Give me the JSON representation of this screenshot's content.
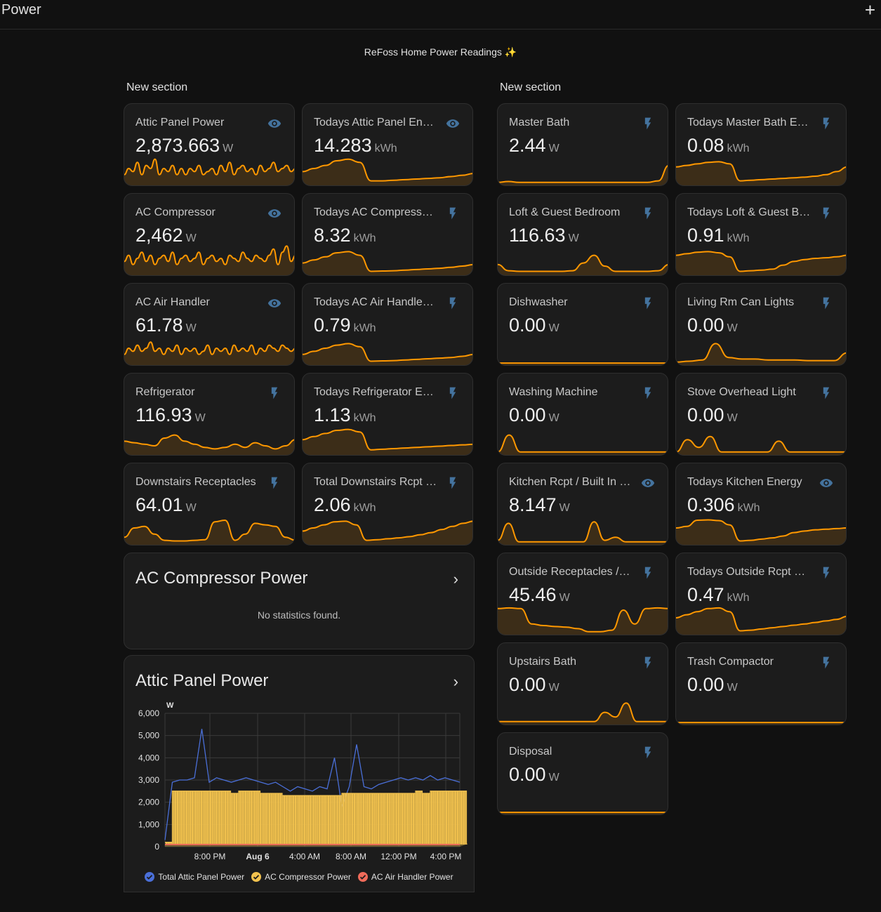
{
  "header": {
    "title": "Power",
    "add_icon": "plus-icon"
  },
  "heading": "ReFoss Home Power Readings ✨",
  "left_section": {
    "title": "New section"
  },
  "right_section": {
    "title": "New section"
  },
  "colors": {
    "accent": "#ff9800",
    "icon_blue": "#44739e",
    "background": "#111111",
    "card": "#1c1c1c"
  },
  "tiles": [
    {
      "id": "attic-panel-power",
      "name": "Attic Panel Power",
      "value": "2,873.663",
      "unit": "W",
      "icon": "eye-icon",
      "spark": [
        0.3,
        0.5,
        0.4,
        0.7,
        0.3,
        0.6,
        0.5,
        0.8,
        0.3,
        0.5,
        0.4,
        0.6,
        0.3,
        0.5,
        0.3,
        0.5,
        0.4,
        0.6,
        0.3,
        0.4,
        0.5,
        0.3,
        0.6,
        0.4,
        0.7,
        0.3,
        0.5,
        0.6,
        0.4,
        0.5,
        0.3,
        0.6,
        0.4,
        0.5,
        0.7,
        0.4,
        0.5,
        0.6,
        0.4,
        0.5
      ]
    },
    {
      "id": "todays-attic-panel-energy",
      "name": "Todays Attic Panel Energy",
      "value": "14.283",
      "unit": "kWh",
      "icon": "eye-icon",
      "spark": [
        0.4,
        0.5,
        0.6,
        0.75,
        0.8,
        0.7,
        0.1,
        0.1,
        0.12,
        0.14,
        0.16,
        0.18,
        0.2,
        0.24,
        0.28,
        0.34
      ]
    },
    {
      "id": "ac-compressor",
      "name": "AC Compressor",
      "value": "2,462",
      "unit": "W",
      "icon": "eye-icon",
      "spark": [
        0.4,
        0.6,
        0.3,
        0.5,
        0.7,
        0.4,
        0.6,
        0.3,
        0.5,
        0.6,
        0.4,
        0.7,
        0.3,
        0.5,
        0.6,
        0.4,
        0.5,
        0.7,
        0.3,
        0.5,
        0.6,
        0.4,
        0.5,
        0.3,
        0.6,
        0.5,
        0.4,
        0.7,
        0.5,
        0.4,
        0.6,
        0.5,
        0.4,
        0.6,
        0.8,
        0.3,
        0.7,
        0.9,
        0.4,
        0.6
      ]
    },
    {
      "id": "todays-ac-compressor",
      "name": "Todays AC Compressor Energy",
      "value": "8.32",
      "unit": "kWh",
      "icon": "flash-icon",
      "spark": [
        0.35,
        0.45,
        0.55,
        0.68,
        0.72,
        0.6,
        0.08,
        0.09,
        0.1,
        0.12,
        0.14,
        0.16,
        0.18,
        0.21,
        0.25,
        0.3
      ]
    },
    {
      "id": "ac-air-handler",
      "name": "AC Air Handler",
      "value": "61.78",
      "unit": "W",
      "icon": "eye-icon",
      "spark": [
        0.3,
        0.5,
        0.4,
        0.6,
        0.4,
        0.5,
        0.7,
        0.4,
        0.5,
        0.3,
        0.5,
        0.4,
        0.6,
        0.3,
        0.5,
        0.4,
        0.5,
        0.3,
        0.4,
        0.6,
        0.3,
        0.5,
        0.4,
        0.5,
        0.3,
        0.6,
        0.4,
        0.5,
        0.4,
        0.6,
        0.3,
        0.5,
        0.4,
        0.6,
        0.5,
        0.4,
        0.6,
        0.5,
        0.4,
        0.5
      ]
    },
    {
      "id": "todays-ac-air-handler",
      "name": "Todays AC Air Handler Energy",
      "value": "0.79",
      "unit": "kWh",
      "icon": "flash-icon",
      "spark": [
        0.3,
        0.4,
        0.5,
        0.6,
        0.65,
        0.55,
        0.08,
        0.09,
        0.1,
        0.12,
        0.14,
        0.16,
        0.18,
        0.2,
        0.24,
        0.3
      ]
    },
    {
      "id": "refrigerator",
      "name": "Refrigerator",
      "value": "116.93",
      "unit": "W",
      "icon": "flash-icon",
      "spark": [
        0.4,
        0.35,
        0.3,
        0.25,
        0.5,
        0.6,
        0.4,
        0.3,
        0.2,
        0.15,
        0.2,
        0.3,
        0.2,
        0.35,
        0.25,
        0.15,
        0.25,
        0.45
      ]
    },
    {
      "id": "todays-refrigerator",
      "name": "Todays Refrigerator Energy",
      "value": "1.13",
      "unit": "kWh",
      "icon": "flash-icon",
      "spark": [
        0.45,
        0.55,
        0.65,
        0.75,
        0.78,
        0.7,
        0.12,
        0.14,
        0.16,
        0.18,
        0.2,
        0.22,
        0.24,
        0.26,
        0.28,
        0.3
      ]
    },
    {
      "id": "downstairs-receptacles",
      "name": "Downstairs Receptacles",
      "value": "64.01",
      "unit": "W",
      "icon": "flash-icon",
      "spark": [
        0.2,
        0.5,
        0.55,
        0.3,
        0.1,
        0.08,
        0.08,
        0.1,
        0.12,
        0.7,
        0.75,
        0.1,
        0.3,
        0.65,
        0.6,
        0.55,
        0.2,
        0.1
      ]
    },
    {
      "id": "total-downstairs-rcpt",
      "name": "Total Downstairs Rcpt Energy",
      "value": "2.06",
      "unit": "kWh",
      "icon": "flash-icon",
      "spark": [
        0.4,
        0.5,
        0.6,
        0.7,
        0.72,
        0.6,
        0.1,
        0.12,
        0.15,
        0.18,
        0.22,
        0.28,
        0.35,
        0.45,
        0.55,
        0.65,
        0.72
      ]
    },
    {
      "id": "master-bath",
      "name": "Master Bath",
      "value": "2.44",
      "unit": "W",
      "icon": "flash-icon",
      "spark": [
        0.05,
        0.08,
        0.05,
        0.05,
        0.05,
        0.05,
        0.05,
        0.05,
        0.05,
        0.05,
        0.05,
        0.05,
        0.05,
        0.05,
        0.05,
        0.1,
        0.6
      ]
    },
    {
      "id": "todays-master-bath",
      "name": "Todays Master Bath Energy",
      "value": "0.08",
      "unit": "kWh",
      "icon": "flash-icon",
      "spark": [
        0.55,
        0.6,
        0.65,
        0.7,
        0.72,
        0.65,
        0.1,
        0.12,
        0.14,
        0.16,
        0.18,
        0.2,
        0.22,
        0.25,
        0.3,
        0.4,
        0.55
      ]
    },
    {
      "id": "loft-guest-bedroom",
      "name": "Loft & Guest Bedroom",
      "value": "116.63",
      "unit": "W",
      "icon": "flash-icon",
      "spark": [
        0.3,
        0.1,
        0.08,
        0.08,
        0.08,
        0.08,
        0.08,
        0.1,
        0.35,
        0.6,
        0.25,
        0.08,
        0.08,
        0.08,
        0.08,
        0.1,
        0.3
      ]
    },
    {
      "id": "todays-loft-guest",
      "name": "Todays Loft & Guest Bdrm Energy",
      "value": "0.91",
      "unit": "kWh",
      "icon": "flash-icon",
      "spark": [
        0.6,
        0.65,
        0.7,
        0.72,
        0.68,
        0.55,
        0.08,
        0.1,
        0.12,
        0.15,
        0.28,
        0.4,
        0.46,
        0.5,
        0.52,
        0.55,
        0.6
      ]
    },
    {
      "id": "dishwasher",
      "name": "Dishwasher",
      "value": "0.00",
      "unit": "W",
      "icon": "flash-icon",
      "spark": [
        0.02,
        0.02,
        0.02,
        0.02,
        0.02,
        0.02,
        0.02,
        0.02,
        0.02,
        0.02,
        0.02,
        0.02
      ]
    },
    {
      "id": "living-rm-can-lights",
      "name": "Living Rm Can Lights",
      "value": "0.00",
      "unit": "W",
      "icon": "flash-icon",
      "spark": [
        0.05,
        0.08,
        0.12,
        0.65,
        0.2,
        0.15,
        0.15,
        0.12,
        0.12,
        0.12,
        0.1,
        0.1,
        0.1,
        0.35
      ]
    },
    {
      "id": "washing-machine",
      "name": "Washing Machine",
      "value": "0.00",
      "unit": "W",
      "icon": "flash-icon",
      "spark": [
        0.05,
        0.6,
        0.05,
        0.05,
        0.05,
        0.05,
        0.05,
        0.05,
        0.05,
        0.05,
        0.05,
        0.05,
        0.05,
        0.05,
        0.05,
        0.05
      ]
    },
    {
      "id": "stove-overhead-light",
      "name": "Stove Overhead Light",
      "value": "0.00",
      "unit": "W",
      "icon": "flash-icon",
      "spark": [
        0.05,
        0.45,
        0.2,
        0.55,
        0.05,
        0.05,
        0.05,
        0.05,
        0.05,
        0.4,
        0.05,
        0.05,
        0.05,
        0.05,
        0.05,
        0.05
      ]
    },
    {
      "id": "kitchen-rcpt",
      "name": "Kitchen Rcpt / Built In Stove",
      "value": "8.147",
      "unit": "W",
      "icon": "eye-icon",
      "spark": [
        0.1,
        0.65,
        0.05,
        0.05,
        0.05,
        0.05,
        0.05,
        0.05,
        0.05,
        0.7,
        0.1,
        0.2,
        0.05,
        0.05,
        0.05,
        0.05,
        0.05
      ]
    },
    {
      "id": "todays-kitchen",
      "name": "Todays Kitchen Energy",
      "value": "0.306",
      "unit": "kWh",
      "icon": "eye-icon",
      "spark": [
        0.5,
        0.55,
        0.75,
        0.76,
        0.74,
        0.6,
        0.08,
        0.1,
        0.14,
        0.18,
        0.24,
        0.35,
        0.4,
        0.44,
        0.46,
        0.48,
        0.5
      ]
    },
    {
      "id": "outside-receptacles",
      "name": "Outside Receptacles / Flood Lights",
      "value": "45.46",
      "unit": "W",
      "icon": "flash-icon",
      "spark": [
        0.8,
        0.82,
        0.8,
        0.3,
        0.25,
        0.22,
        0.2,
        0.15,
        0.05,
        0.05,
        0.1,
        0.75,
        0.3,
        0.8,
        0.82,
        0.8
      ]
    },
    {
      "id": "todays-outside-rcpt",
      "name": "Todays Outside Rcpt Energy",
      "value": "0.47",
      "unit": "kWh",
      "icon": "flash-icon",
      "spark": [
        0.5,
        0.6,
        0.7,
        0.8,
        0.82,
        0.7,
        0.08,
        0.1,
        0.14,
        0.18,
        0.22,
        0.26,
        0.3,
        0.35,
        0.4,
        0.45,
        0.55
      ]
    },
    {
      "id": "upstairs-bath",
      "name": "Upstairs Bath",
      "value": "0.00",
      "unit": "W",
      "icon": "flash-icon",
      "spark": [
        0.05,
        0.05,
        0.05,
        0.05,
        0.05,
        0.05,
        0.05,
        0.05,
        0.05,
        0.05,
        0.35,
        0.2,
        0.65,
        0.05,
        0.05,
        0.05,
        0.05
      ]
    },
    {
      "id": "trash-compactor",
      "name": "Trash Compactor",
      "value": "0.00",
      "unit": "W",
      "icon": "flash-icon",
      "spark": [
        0.02,
        0.02,
        0.02,
        0.02,
        0.02,
        0.02,
        0.02,
        0.02,
        0.02,
        0.02,
        0.02,
        0.02
      ]
    },
    {
      "id": "disposal",
      "name": "Disposal",
      "value": "0.00",
      "unit": "W",
      "icon": "flash-icon",
      "spark": [
        0.02,
        0.02,
        0.02,
        0.02,
        0.02,
        0.02,
        0.02,
        0.02,
        0.02,
        0.02,
        0.02,
        0.02
      ]
    }
  ],
  "ac_compressor_card": {
    "title": "AC Compressor Power",
    "message": "No statistics found."
  },
  "attic_card": {
    "title": "Attic Panel Power"
  },
  "chart_data": {
    "type": "line",
    "ylabel": "W",
    "ylim": [
      0,
      6000
    ],
    "yticks": [
      "6,000",
      "5,000",
      "4,000",
      "3,000",
      "2,000",
      "1,000",
      "0"
    ],
    "xticks": [
      "8:00 PM",
      "Aug 6",
      "4:00 AM",
      "8:00 AM",
      "12:00 PM",
      "4:00 PM"
    ],
    "grid": true,
    "legend_position": "bottom",
    "series": [
      {
        "name": "Total Attic Panel Power",
        "color": "#4a6fd8",
        "values": [
          300,
          2900,
          3000,
          3000,
          3100,
          5300,
          2900,
          3100,
          3000,
          2900,
          3000,
          3100,
          3000,
          2900,
          2800,
          2900,
          2700,
          2500,
          2700,
          2600,
          2500,
          2700,
          2600,
          4000,
          1800,
          2700,
          4600,
          2700,
          2600,
          2800,
          2900,
          3000,
          3100,
          3000,
          3100,
          3000,
          3200,
          3000,
          3100,
          3000,
          2900
        ]
      },
      {
        "name": "AC Compressor Power",
        "color": "#f2c24e",
        "values": [
          200,
          2500,
          2500,
          2500,
          2500,
          2500,
          2500,
          2500,
          2500,
          2400,
          2500,
          2500,
          2500,
          2400,
          2400,
          2400,
          2300,
          2300,
          2300,
          2300,
          2300,
          2300,
          2300,
          2300,
          2400,
          2400,
          2400,
          2400,
          2400,
          2400,
          2400,
          2400,
          2400,
          2400,
          2500,
          2400,
          2500,
          2500,
          2500,
          2500,
          2500
        ]
      },
      {
        "name": "AC Air Handler Power",
        "color": "#f06b5a",
        "values": [
          100,
          100,
          100,
          100,
          100,
          100,
          100,
          100,
          100,
          100,
          100,
          100,
          100,
          100,
          100,
          100,
          100,
          100,
          100,
          100,
          100,
          100,
          100,
          100,
          100,
          100,
          100,
          100,
          100,
          100,
          100,
          100,
          100,
          100,
          100,
          100,
          100,
          100,
          100,
          100,
          100
        ]
      }
    ]
  }
}
